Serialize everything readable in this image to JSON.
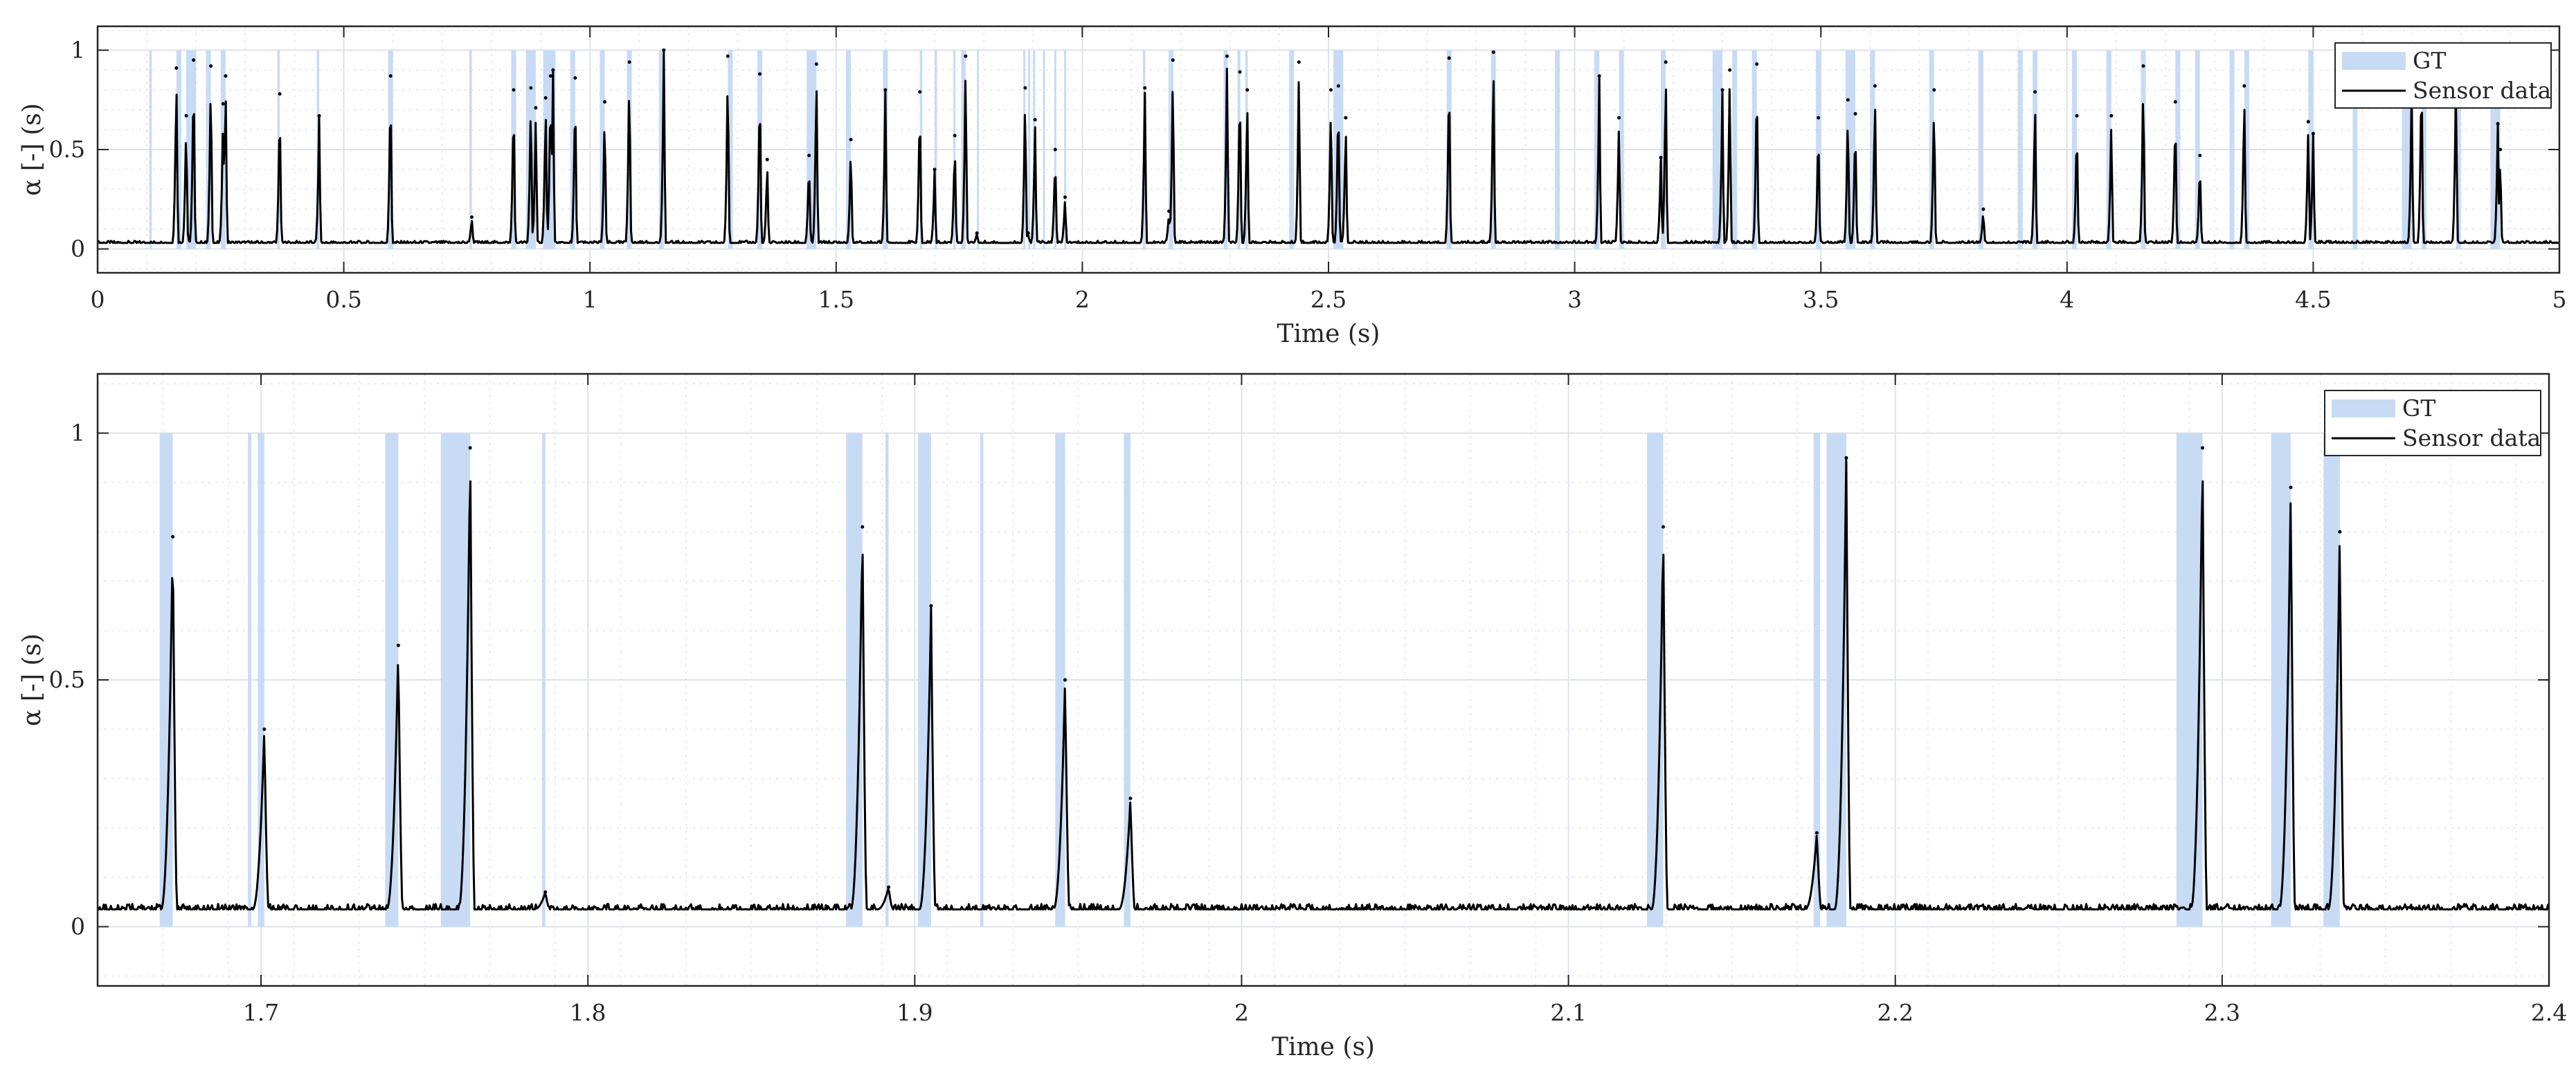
{
  "figure": {
    "background": "#ffffff",
    "gt_color": "#c8dbf5",
    "signal_color": "#000000",
    "grid_color": "#dfe3e8",
    "minor_grid_color": "#e8ebef",
    "axes_color": "#262626"
  },
  "chart_data": [
    {
      "type": "area",
      "xlabel": "Time (s)",
      "ylabel": "α [-] (s)",
      "xlim": [
        0,
        5
      ],
      "ylim": [
        -0.12,
        1.12
      ],
      "xticks": [
        0,
        0.5,
        1,
        1.5,
        2,
        2.5,
        3,
        3.5,
        4,
        4.5,
        5
      ],
      "xtick_labels": [
        "0",
        "0.5",
        "1",
        "1.5",
        "2",
        "2.5",
        "3",
        "3.5",
        "4",
        "4.5",
        "5"
      ],
      "yticks": [
        0,
        0.5,
        1
      ],
      "ytick_labels": [
        "0",
        "0.5",
        "1"
      ],
      "grid": true,
      "minor_grid": true,
      "legend": {
        "location": "top-right",
        "entries": [
          "GT",
          "Sensor data"
        ]
      },
      "baseline": 0.03,
      "series": [
        {
          "name": "GT",
          "kind": "intervals",
          "intervals": [
            [
              0.105,
              0.11
            ],
            [
              0.16,
              0.17
            ],
            [
              0.18,
              0.2
            ],
            [
              0.22,
              0.23
            ],
            [
              0.25,
              0.26
            ],
            [
              0.365,
              0.37
            ],
            [
              0.445,
              0.45
            ],
            [
              0.59,
              0.6
            ],
            [
              0.755,
              0.76
            ],
            [
              0.84,
              0.85
            ],
            [
              0.87,
              0.89
            ],
            [
              0.905,
              0.93
            ],
            [
              0.96,
              0.97
            ],
            [
              1.02,
              1.03
            ],
            [
              1.075,
              1.085
            ],
            [
              1.14,
              1.15
            ],
            [
              1.28,
              1.29
            ],
            [
              1.34,
              1.35
            ],
            [
              1.44,
              1.46
            ],
            [
              1.52,
              1.53
            ],
            [
              1.595,
              1.605
            ],
            [
              1.67,
              1.675
            ],
            [
              1.7,
              1.705
            ],
            [
              1.738,
              1.742
            ],
            [
              1.754,
              1.763
            ],
            [
              1.786,
              1.788
            ],
            [
              1.88,
              1.884
            ],
            [
              1.89,
              1.892
            ],
            [
              1.9,
              1.904
            ],
            [
              1.92,
              1.922
            ],
            [
              1.943,
              1.946
            ],
            [
              1.963,
              1.965
            ],
            [
              2.123,
              2.128
            ],
            [
              2.175,
              2.177
            ],
            [
              2.179,
              2.185
            ],
            [
              2.287,
              2.295
            ],
            [
              2.315,
              2.321
            ],
            [
              2.331,
              2.336
            ],
            [
              2.42,
              2.43
            ],
            [
              2.51,
              2.53
            ],
            [
              2.74,
              2.75
            ],
            [
              2.83,
              2.84
            ],
            [
              2.96,
              2.97
            ],
            [
              3.04,
              3.05
            ],
            [
              3.09,
              3.1
            ],
            [
              3.175,
              3.185
            ],
            [
              3.28,
              3.3
            ],
            [
              3.32,
              3.33
            ],
            [
              3.36,
              3.37
            ],
            [
              3.49,
              3.5
            ],
            [
              3.55,
              3.57
            ],
            [
              3.6,
              3.61
            ],
            [
              3.72,
              3.73
            ],
            [
              3.82,
              3.83
            ],
            [
              3.9,
              3.91
            ],
            [
              3.93,
              3.94
            ],
            [
              4.01,
              4.02
            ],
            [
              4.08,
              4.09
            ],
            [
              4.15,
              4.16
            ],
            [
              4.22,
              4.23
            ],
            [
              4.26,
              4.27
            ],
            [
              4.33,
              4.34
            ],
            [
              4.36,
              4.37
            ],
            [
              4.49,
              4.5
            ],
            [
              4.58,
              4.59
            ],
            [
              4.68,
              4.7
            ],
            [
              4.72,
              4.73
            ],
            [
              4.79,
              4.8
            ],
            [
              4.86,
              4.88
            ]
          ]
        },
        {
          "name": "Sensor data",
          "kind": "peaks",
          "peaks": [
            [
              0.16,
              0.91
            ],
            [
              0.18,
              0.67
            ],
            [
              0.195,
              0.95
            ],
            [
              0.23,
              0.92
            ],
            [
              0.255,
              0.73
            ],
            [
              0.26,
              0.87
            ],
            [
              0.37,
              0.78
            ],
            [
              0.45,
              0.67
            ],
            [
              0.595,
              0.87
            ],
            [
              0.76,
              0.16
            ],
            [
              0.845,
              0.8
            ],
            [
              0.88,
              0.81
            ],
            [
              0.89,
              0.71
            ],
            [
              0.91,
              0.76
            ],
            [
              0.92,
              0.87
            ],
            [
              0.925,
              0.9
            ],
            [
              0.97,
              0.86
            ],
            [
              1.03,
              0.74
            ],
            [
              1.08,
              0.94
            ],
            [
              1.15,
              1.0
            ],
            [
              1.28,
              0.97
            ],
            [
              1.345,
              0.88
            ],
            [
              1.36,
              0.45
            ],
            [
              1.445,
              0.47
            ],
            [
              1.46,
              0.93
            ],
            [
              1.53,
              0.55
            ],
            [
              1.6,
              0.8
            ],
            [
              1.67,
              0.79
            ],
            [
              1.7,
              0.4
            ],
            [
              1.741,
              0.57
            ],
            [
              1.763,
              0.97
            ],
            [
              1.786,
              0.08
            ],
            [
              1.884,
              0.81
            ],
            [
              1.89,
              0.08
            ],
            [
              1.904,
              0.65
            ],
            [
              1.945,
              0.5
            ],
            [
              1.965,
              0.26
            ],
            [
              2.127,
              0.81
            ],
            [
              2.176,
              0.19
            ],
            [
              2.184,
              0.95
            ],
            [
              2.294,
              0.97
            ],
            [
              2.32,
              0.89
            ],
            [
              2.335,
              0.8
            ],
            [
              2.44,
              0.94
            ],
            [
              2.505,
              0.8
            ],
            [
              2.52,
              0.82
            ],
            [
              2.535,
              0.66
            ],
            [
              2.745,
              0.96
            ],
            [
              2.835,
              0.99
            ],
            [
              3.05,
              0.87
            ],
            [
              3.09,
              0.66
            ],
            [
              3.175,
              0.46
            ],
            [
              3.185,
              0.94
            ],
            [
              3.3,
              0.8
            ],
            [
              3.315,
              0.9
            ],
            [
              3.37,
              0.93
            ],
            [
              3.495,
              0.66
            ],
            [
              3.555,
              0.75
            ],
            [
              3.57,
              0.68
            ],
            [
              3.61,
              0.82
            ],
            [
              3.73,
              0.8
            ],
            [
              3.83,
              0.2
            ],
            [
              3.935,
              0.79
            ],
            [
              4.02,
              0.67
            ],
            [
              4.09,
              0.67
            ],
            [
              4.155,
              0.92
            ],
            [
              4.22,
              0.74
            ],
            [
              4.27,
              0.47
            ],
            [
              4.36,
              0.82
            ],
            [
              4.49,
              0.64
            ],
            [
              4.5,
              0.58
            ],
            [
              4.7,
              0.82
            ],
            [
              4.72,
              0.96
            ],
            [
              4.79,
              0.9
            ],
            [
              4.875,
              0.63
            ],
            [
              4.88,
              0.5
            ]
          ]
        }
      ]
    },
    {
      "type": "area",
      "xlabel": "Time (s)",
      "ylabel": "α [-] (s)",
      "xlim": [
        1.65,
        2.4
      ],
      "ylim": [
        -0.12,
        1.12
      ],
      "xticks": [
        1.7,
        1.8,
        1.9,
        2,
        2.1,
        2.2,
        2.3,
        2.4
      ],
      "xtick_labels": [
        "1.7",
        "1.8",
        "1.9",
        "2",
        "2.1",
        "2.2",
        "2.3",
        "2.4"
      ],
      "yticks": [
        0,
        0.5,
        1
      ],
      "ytick_labels": [
        "0",
        "0.5",
        "1"
      ],
      "grid": true,
      "minor_grid": true,
      "legend": {
        "location": "top-right",
        "entries": [
          "GT",
          "Sensor data"
        ]
      },
      "baseline": 0.035,
      "series": [
        {
          "name": "GT",
          "kind": "intervals",
          "intervals": [
            [
              1.669,
              1.673
            ],
            [
              1.696,
              1.697
            ],
            [
              1.699,
              1.701
            ],
            [
              1.738,
              1.742
            ],
            [
              1.755,
              1.764
            ],
            [
              1.786,
              1.787
            ],
            [
              1.879,
              1.884
            ],
            [
              1.891,
              1.892
            ],
            [
              1.901,
              1.905
            ],
            [
              1.92,
              1.921
            ],
            [
              1.943,
              1.946
            ],
            [
              1.964,
              1.966
            ],
            [
              2.124,
              2.129
            ],
            [
              2.175,
              2.177
            ],
            [
              2.179,
              2.185
            ],
            [
              2.286,
              2.294
            ],
            [
              2.315,
              2.321
            ],
            [
              2.331,
              2.336
            ]
          ]
        },
        {
          "name": "Sensor data",
          "kind": "peaks",
          "peaks": [
            [
              1.673,
              0.79
            ],
            [
              1.701,
              0.4
            ],
            [
              1.742,
              0.57
            ],
            [
              1.764,
              0.97
            ],
            [
              1.787,
              0.07
            ],
            [
              1.884,
              0.81
            ],
            [
              1.892,
              0.08
            ],
            [
              1.905,
              0.65
            ],
            [
              1.946,
              0.5
            ],
            [
              1.966,
              0.26
            ],
            [
              2.129,
              0.81
            ],
            [
              2.176,
              0.19
            ],
            [
              2.185,
              0.95
            ],
            [
              2.294,
              0.97
            ],
            [
              2.321,
              0.89
            ],
            [
              2.336,
              0.8
            ]
          ]
        }
      ]
    }
  ]
}
